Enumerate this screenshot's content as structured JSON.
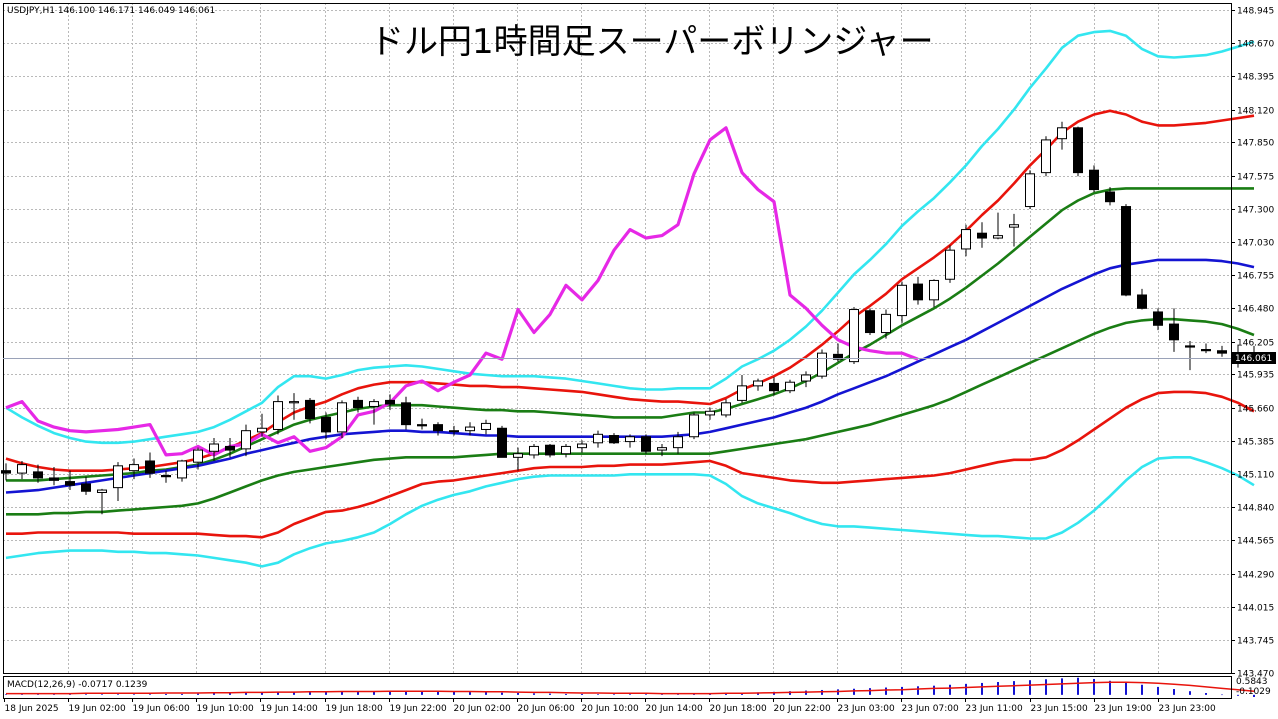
{
  "header": {
    "symbol_info": "USDJPY,H1  146.100 146.171 146.049 146.061",
    "title": "ドル円1時間足スーパーボリンジャー"
  },
  "macd": {
    "label": "MACD(12,26,9) -0.0717 0.1239",
    "scale_top": "0.5843",
    "scale_bottom": "-0.1029"
  },
  "current_price": "146.061",
  "colors": {
    "sigma3": "#33e6f0",
    "sigma2": "#e8140c",
    "sigma1": "#1a7d14",
    "mid": "#1414d2",
    "chikou": "#e628e6",
    "candle": "#000000",
    "macd_hist": "#1414d2",
    "macd_signal": "#e8140c"
  },
  "chart_data": {
    "type": "candlestick",
    "title": "ドル円1時間足スーパーボリンジャー",
    "ylim": [
      143.47,
      149.0
    ],
    "yticks": [
      "148.945",
      "148.670",
      "148.395",
      "148.120",
      "147.850",
      "147.575",
      "147.300",
      "147.030",
      "146.755",
      "146.480",
      "146.205",
      "145.935",
      "145.660",
      "145.385",
      "145.110",
      "144.840",
      "144.565",
      "144.290",
      "144.015",
      "143.745",
      "143.470"
    ],
    "xticks": [
      "18 Jun 2025",
      "19 Jun 02:00",
      "19 Jun 06:00",
      "19 Jun 10:00",
      "19 Jun 14:00",
      "19 Jun 18:00",
      "19 Jun 22:00",
      "20 Jun 02:00",
      "20 Jun 06:00",
      "20 Jun 10:00",
      "20 Jun 14:00",
      "20 Jun 18:00",
      "20 Jun 22:00",
      "23 Jun 03:00",
      "23 Jun 07:00",
      "23 Jun 11:00",
      "23 Jun 15:00",
      "23 Jun 19:00",
      "23 Jun 23:00"
    ],
    "candles": [
      [
        145.14,
        145.2,
        145.06,
        145.12
      ],
      [
        145.12,
        145.22,
        145.07,
        145.19
      ],
      [
        145.13,
        145.19,
        145.04,
        145.08
      ],
      [
        145.08,
        145.17,
        145.02,
        145.06
      ],
      [
        145.05,
        145.14,
        144.98,
        145.02
      ],
      [
        145.03,
        145.09,
        144.94,
        144.97
      ],
      [
        144.96,
        144.99,
        144.78,
        144.98
      ],
      [
        145.0,
        145.21,
        144.89,
        145.18
      ],
      [
        145.14,
        145.24,
        145.07,
        145.19
      ],
      [
        145.22,
        145.29,
        145.08,
        145.12
      ],
      [
        145.1,
        145.14,
        145.04,
        145.09
      ],
      [
        145.08,
        145.23,
        145.05,
        145.22
      ],
      [
        145.21,
        145.33,
        145.15,
        145.31
      ],
      [
        145.3,
        145.41,
        145.22,
        145.36
      ],
      [
        145.34,
        145.41,
        145.25,
        145.31
      ],
      [
        145.32,
        145.52,
        145.26,
        145.47
      ],
      [
        145.46,
        145.61,
        145.42,
        145.49
      ],
      [
        145.48,
        145.76,
        145.44,
        145.71
      ],
      [
        145.7,
        145.78,
        145.56,
        145.71
      ],
      [
        145.72,
        145.74,
        145.53,
        145.57
      ],
      [
        145.58,
        145.62,
        145.4,
        145.46
      ],
      [
        145.46,
        145.72,
        145.41,
        145.7
      ],
      [
        145.72,
        145.75,
        145.62,
        145.66
      ],
      [
        145.67,
        145.73,
        145.52,
        145.71
      ],
      [
        145.72,
        145.77,
        145.64,
        145.69
      ],
      [
        145.7,
        145.75,
        145.48,
        145.52
      ],
      [
        145.52,
        145.57,
        145.48,
        145.51
      ],
      [
        145.52,
        145.54,
        145.43,
        145.47
      ],
      [
        145.47,
        145.51,
        145.43,
        145.47
      ],
      [
        145.47,
        145.54,
        145.43,
        145.5
      ],
      [
        145.48,
        145.56,
        145.44,
        145.53
      ],
      [
        145.49,
        145.51,
        145.26,
        145.25
      ],
      [
        145.25,
        145.33,
        145.14,
        145.28
      ],
      [
        145.27,
        145.36,
        145.24,
        145.34
      ],
      [
        145.35,
        145.36,
        145.25,
        145.27
      ],
      [
        145.28,
        145.36,
        145.25,
        145.34
      ],
      [
        145.33,
        145.39,
        145.29,
        145.36
      ],
      [
        145.37,
        145.47,
        145.33,
        145.44
      ],
      [
        145.43,
        145.45,
        145.36,
        145.37
      ],
      [
        145.38,
        145.44,
        145.33,
        145.42
      ],
      [
        145.42,
        145.44,
        145.28,
        145.3
      ],
      [
        145.31,
        145.36,
        145.26,
        145.33
      ],
      [
        145.33,
        145.46,
        145.28,
        145.42
      ],
      [
        145.42,
        145.62,
        145.4,
        145.6
      ],
      [
        145.6,
        145.66,
        145.56,
        145.63
      ],
      [
        145.6,
        145.73,
        145.58,
        145.7
      ],
      [
        145.72,
        145.93,
        145.7,
        145.84
      ],
      [
        145.84,
        145.9,
        145.8,
        145.88
      ],
      [
        145.86,
        145.91,
        145.76,
        145.8
      ],
      [
        145.8,
        145.89,
        145.78,
        145.87
      ],
      [
        145.88,
        145.96,
        145.83,
        145.93
      ],
      [
        145.92,
        146.14,
        145.9,
        146.11
      ],
      [
        146.1,
        146.19,
        146.04,
        146.06
      ],
      [
        146.04,
        146.49,
        146.02,
        146.47
      ],
      [
        146.46,
        146.48,
        146.26,
        146.28
      ],
      [
        146.28,
        146.47,
        146.23,
        146.43
      ],
      [
        146.42,
        146.7,
        146.36,
        146.67
      ],
      [
        146.68,
        146.74,
        146.51,
        146.55
      ],
      [
        146.55,
        146.72,
        146.49,
        146.71
      ],
      [
        146.72,
        147.0,
        146.69,
        146.96
      ],
      [
        146.97,
        147.17,
        146.91,
        147.13
      ],
      [
        147.1,
        147.19,
        146.98,
        147.06
      ],
      [
        147.06,
        147.27,
        147.05,
        147.08
      ],
      [
        147.15,
        147.26,
        146.99,
        147.17
      ],
      [
        147.32,
        147.62,
        147.3,
        147.59
      ],
      [
        147.6,
        147.9,
        147.57,
        147.87
      ],
      [
        147.88,
        148.02,
        147.79,
        147.97
      ],
      [
        147.97,
        147.98,
        147.57,
        147.6
      ],
      [
        147.62,
        147.66,
        147.44,
        147.46
      ],
      [
        147.44,
        147.48,
        147.33,
        147.36
      ],
      [
        147.32,
        147.34,
        146.58,
        146.59
      ],
      [
        146.59,
        146.64,
        146.47,
        146.48
      ],
      [
        146.45,
        146.48,
        146.3,
        146.34
      ],
      [
        146.35,
        146.48,
        146.12,
        146.22
      ],
      [
        146.17,
        146.21,
        145.97,
        146.16
      ],
      [
        146.14,
        146.19,
        146.11,
        146.13
      ],
      [
        146.13,
        146.17,
        146.08,
        146.11
      ],
      [
        146.05,
        146.18,
        145.99,
        146.11
      ],
      [
        146.1,
        146.17,
        146.05,
        146.06
      ]
    ],
    "bands": {
      "sigma_plus3": [
        145.66,
        145.58,
        145.51,
        145.45,
        145.41,
        145.38,
        145.37,
        145.37,
        145.38,
        145.4,
        145.42,
        145.44,
        145.46,
        145.5,
        145.56,
        145.63,
        145.7,
        145.83,
        145.92,
        145.92,
        145.9,
        145.93,
        145.97,
        145.99,
        146.0,
        146.01,
        146.0,
        145.98,
        145.96,
        145.94,
        145.93,
        145.92,
        145.92,
        145.92,
        145.91,
        145.9,
        145.88,
        145.86,
        145.84,
        145.82,
        145.81,
        145.81,
        145.82,
        145.82,
        145.82,
        145.9,
        146.0,
        146.06,
        146.13,
        146.22,
        146.33,
        146.46,
        146.61,
        146.76,
        146.88,
        147.01,
        147.16,
        147.28,
        147.39,
        147.52,
        147.66,
        147.82,
        147.96,
        148.12,
        148.3,
        148.46,
        148.63,
        148.73,
        148.76,
        148.77,
        148.73,
        148.62,
        148.56,
        148.55,
        148.56,
        148.57,
        148.6,
        148.64,
        148.68
      ],
      "sigma_plus2": [
        145.24,
        145.2,
        145.17,
        145.15,
        145.14,
        145.14,
        145.14,
        145.15,
        145.16,
        145.17,
        145.19,
        145.21,
        145.24,
        145.28,
        145.33,
        145.39,
        145.45,
        145.54,
        145.62,
        145.67,
        145.71,
        145.77,
        145.82,
        145.85,
        145.87,
        145.87,
        145.87,
        145.86,
        145.85,
        145.84,
        145.84,
        145.83,
        145.83,
        145.82,
        145.81,
        145.8,
        145.79,
        145.77,
        145.75,
        145.73,
        145.72,
        145.71,
        145.71,
        145.7,
        145.69,
        145.74,
        145.81,
        145.86,
        145.92,
        145.99,
        146.08,
        146.18,
        146.29,
        146.41,
        146.5,
        146.6,
        146.72,
        146.81,
        146.9,
        147.0,
        147.12,
        147.25,
        147.37,
        147.51,
        147.66,
        147.79,
        147.93,
        148.02,
        148.08,
        148.11,
        148.08,
        148.02,
        147.99,
        147.99,
        148.0,
        148.01,
        148.03,
        148.05,
        148.07
      ],
      "sigma_plus1": [
        145.06,
        145.06,
        145.06,
        145.07,
        145.08,
        145.09,
        145.1,
        145.11,
        145.12,
        145.14,
        145.15,
        145.17,
        145.19,
        145.23,
        145.28,
        145.34,
        145.4,
        145.46,
        145.52,
        145.56,
        145.59,
        145.62,
        145.65,
        145.67,
        145.68,
        145.68,
        145.68,
        145.67,
        145.66,
        145.65,
        145.64,
        145.64,
        145.63,
        145.63,
        145.62,
        145.61,
        145.6,
        145.59,
        145.58,
        145.58,
        145.58,
        145.58,
        145.6,
        145.62,
        145.62,
        145.65,
        145.69,
        145.73,
        145.77,
        145.82,
        145.88,
        145.95,
        146.03,
        146.11,
        146.18,
        146.26,
        146.34,
        146.41,
        146.48,
        146.56,
        146.65,
        146.75,
        146.85,
        146.96,
        147.07,
        147.18,
        147.29,
        147.37,
        147.43,
        147.46,
        147.47,
        147.47,
        147.47,
        147.47,
        147.47,
        147.47,
        147.47,
        147.47,
        147.47
      ],
      "mid": [
        144.96,
        144.97,
        144.98,
        145.0,
        145.02,
        145.04,
        145.06,
        145.08,
        145.1,
        145.12,
        145.14,
        145.16,
        145.18,
        145.21,
        145.24,
        145.28,
        145.31,
        145.34,
        145.37,
        145.4,
        145.42,
        145.44,
        145.45,
        145.46,
        145.47,
        145.47,
        145.46,
        145.46,
        145.45,
        145.44,
        145.43,
        145.43,
        145.42,
        145.42,
        145.42,
        145.42,
        145.42,
        145.42,
        145.42,
        145.42,
        145.42,
        145.42,
        145.43,
        145.44,
        145.46,
        145.49,
        145.52,
        145.55,
        145.58,
        145.62,
        145.66,
        145.71,
        145.77,
        145.82,
        145.87,
        145.92,
        145.98,
        146.04,
        146.1,
        146.16,
        146.22,
        146.29,
        146.36,
        146.43,
        146.5,
        146.57,
        146.64,
        146.7,
        146.76,
        146.81,
        146.84,
        146.86,
        146.88,
        146.88,
        146.88,
        146.88,
        146.87,
        146.85,
        146.82
      ],
      "sigma_minus1": [
        144.78,
        144.78,
        144.78,
        144.79,
        144.79,
        144.8,
        144.8,
        144.81,
        144.82,
        144.83,
        144.84,
        144.85,
        144.87,
        144.91,
        144.96,
        145.01,
        145.06,
        145.1,
        145.13,
        145.15,
        145.17,
        145.19,
        145.21,
        145.23,
        145.24,
        145.25,
        145.25,
        145.25,
        145.25,
        145.26,
        145.27,
        145.28,
        145.28,
        145.28,
        145.28,
        145.28,
        145.28,
        145.28,
        145.28,
        145.28,
        145.28,
        145.28,
        145.28,
        145.28,
        145.28,
        145.3,
        145.32,
        145.34,
        145.36,
        145.38,
        145.4,
        145.43,
        145.46,
        145.49,
        145.52,
        145.56,
        145.6,
        145.64,
        145.68,
        145.73,
        145.79,
        145.85,
        145.91,
        145.97,
        146.03,
        146.09,
        146.15,
        146.21,
        146.27,
        146.32,
        146.36,
        146.38,
        146.39,
        146.39,
        146.38,
        146.37,
        146.35,
        146.31,
        146.26
      ],
      "sigma_minus2": [
        144.62,
        144.62,
        144.63,
        144.63,
        144.63,
        144.63,
        144.63,
        144.63,
        144.62,
        144.62,
        144.62,
        144.62,
        144.62,
        144.61,
        144.6,
        144.6,
        144.59,
        144.63,
        144.7,
        144.75,
        144.8,
        144.81,
        144.84,
        144.88,
        144.93,
        144.98,
        145.03,
        145.05,
        145.06,
        145.08,
        145.1,
        145.12,
        145.14,
        145.16,
        145.17,
        145.17,
        145.17,
        145.18,
        145.18,
        145.19,
        145.19,
        145.19,
        145.2,
        145.21,
        145.22,
        145.18,
        145.12,
        145.1,
        145.08,
        145.06,
        145.05,
        145.04,
        145.04,
        145.05,
        145.06,
        145.07,
        145.08,
        145.09,
        145.1,
        145.12,
        145.15,
        145.18,
        145.21,
        145.23,
        145.23,
        145.25,
        145.31,
        145.39,
        145.48,
        145.57,
        145.66,
        145.73,
        145.78,
        145.79,
        145.79,
        145.78,
        145.75,
        145.7,
        145.63
      ],
      "sigma_minus3": [
        144.42,
        144.44,
        144.46,
        144.47,
        144.48,
        144.48,
        144.48,
        144.47,
        144.47,
        144.46,
        144.46,
        144.45,
        144.44,
        144.42,
        144.4,
        144.38,
        144.35,
        144.38,
        144.45,
        144.5,
        144.54,
        144.56,
        144.59,
        144.63,
        144.7,
        144.78,
        144.85,
        144.9,
        144.94,
        144.97,
        145.01,
        145.04,
        145.07,
        145.09,
        145.1,
        145.1,
        145.1,
        145.1,
        145.1,
        145.11,
        145.11,
        145.11,
        145.11,
        145.11,
        145.1,
        145.03,
        144.93,
        144.87,
        144.83,
        144.79,
        144.74,
        144.7,
        144.68,
        144.68,
        144.67,
        144.66,
        144.65,
        144.64,
        144.63,
        144.62,
        144.61,
        144.6,
        144.6,
        144.59,
        144.58,
        144.58,
        144.63,
        144.71,
        144.81,
        144.93,
        145.06,
        145.17,
        145.24,
        145.25,
        145.25,
        145.21,
        145.16,
        145.1,
        145.02
      ]
    },
    "chikou": [
      145.66,
      145.71,
      145.55,
      145.5,
      145.47,
      145.46,
      145.47,
      145.48,
      145.5,
      145.52,
      145.27,
      145.28,
      145.34,
      145.27,
      145.34,
      145.36,
      145.44,
      145.37,
      145.42,
      145.3,
      145.33,
      145.42,
      145.6,
      145.63,
      145.7,
      145.84,
      145.88,
      145.8,
      145.87,
      145.93,
      146.11,
      146.06,
      146.47,
      146.28,
      146.43,
      146.67,
      146.55,
      146.71,
      146.96,
      147.13,
      147.06,
      147.08,
      147.17,
      147.59,
      147.87,
      147.97,
      147.6,
      147.46,
      147.36,
      146.59,
      146.48,
      146.34,
      146.22,
      146.16,
      146.13,
      146.11,
      146.11,
      146.06
    ],
    "macd": {
      "histogram": [
        0.02,
        0.02,
        0.02,
        0.02,
        0.02,
        0.02,
        0.02,
        0.02,
        0.02,
        0.02,
        0.03,
        0.03,
        0.04,
        0.05,
        0.06,
        0.07,
        0.07,
        0.08,
        0.09,
        0.1,
        0.1,
        0.11,
        0.11,
        0.11,
        0.12,
        0.12,
        0.12,
        0.11,
        0.1,
        0.09,
        0.08,
        0.07,
        0.06,
        0.05,
        0.04,
        0.03,
        0.03,
        0.02,
        0.02,
        0.02,
        0.02,
        0.02,
        0.02,
        0.03,
        0.04,
        0.05,
        0.06,
        0.08,
        0.1,
        0.12,
        0.14,
        0.16,
        0.18,
        0.2,
        0.22,
        0.24,
        0.26,
        0.28,
        0.3,
        0.33,
        0.36,
        0.39,
        0.42,
        0.45,
        0.48,
        0.51,
        0.54,
        0.56,
        0.52,
        0.46,
        0.4,
        0.33,
        0.26,
        0.19,
        0.12,
        0.06,
        0.01,
        -0.03,
        -0.07
      ],
      "signal": [
        0.04,
        0.04,
        0.04,
        0.04,
        0.04,
        0.05,
        0.05,
        0.05,
        0.05,
        0.05,
        0.06,
        0.06,
        0.06,
        0.07,
        0.07,
        0.08,
        0.08,
        0.09,
        0.09,
        0.1,
        0.1,
        0.11,
        0.11,
        0.11,
        0.12,
        0.12,
        0.12,
        0.12,
        0.11,
        0.11,
        0.1,
        0.1,
        0.09,
        0.08,
        0.08,
        0.07,
        0.06,
        0.06,
        0.05,
        0.05,
        0.05,
        0.04,
        0.04,
        0.04,
        0.04,
        0.05,
        0.05,
        0.06,
        0.07,
        0.08,
        0.09,
        0.1,
        0.11,
        0.13,
        0.14,
        0.16,
        0.17,
        0.19,
        0.21,
        0.22,
        0.24,
        0.26,
        0.28,
        0.3,
        0.32,
        0.34,
        0.36,
        0.38,
        0.4,
        0.41,
        0.41,
        0.4,
        0.38,
        0.35,
        0.31,
        0.26,
        0.21,
        0.17,
        0.12
      ],
      "ylim": [
        -0.1029,
        0.5843
      ]
    }
  }
}
